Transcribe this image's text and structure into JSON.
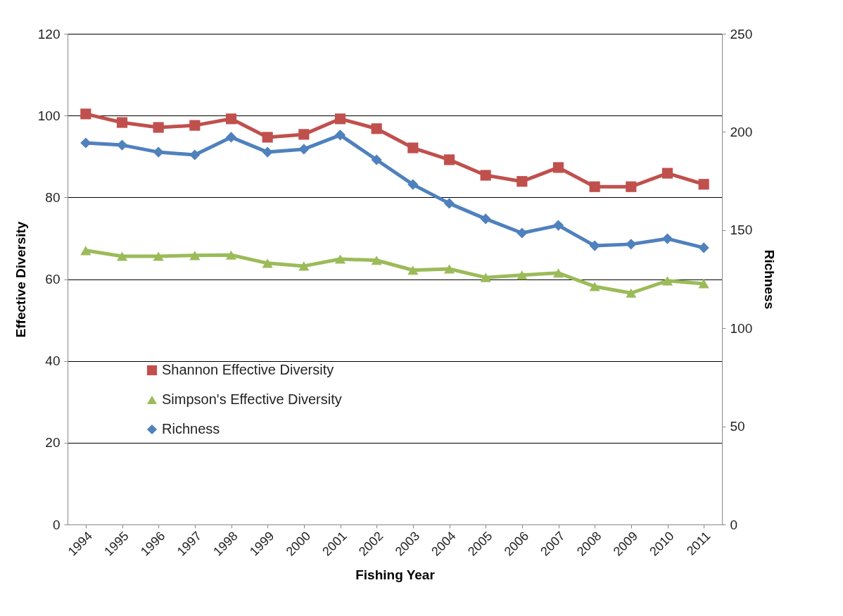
{
  "chart_data": {
    "type": "line",
    "xlabel": "Fishing Year",
    "ylabel": "Effective Diversity",
    "y2label": "Richness",
    "categories": [
      "1994",
      "1995",
      "1996",
      "1997",
      "1998",
      "1999",
      "2000",
      "2001",
      "2002",
      "2003",
      "2004",
      "2005",
      "2006",
      "2007",
      "2008",
      "2009",
      "2010",
      "2011"
    ],
    "series": [
      {
        "name": "Shannon Effective Diversity",
        "color": "#c0504d",
        "marker": "square",
        "values": [
          100.4,
          98.3,
          97.1,
          97.6,
          99.2,
          94.7,
          95.4,
          99.2,
          96.8,
          92.1,
          89.2,
          85.4,
          83.9,
          87.3,
          82.6,
          82.6,
          85.9,
          83.2
        ]
      },
      {
        "name": "Simpson's Effective Diversity",
        "color": "#9bbb59",
        "marker": "triangle",
        "values": [
          67.0,
          65.6,
          65.6,
          65.8,
          65.9,
          63.9,
          63.2,
          64.9,
          64.6,
          62.2,
          62.5,
          60.4,
          61.0,
          61.5,
          58.2,
          56.6,
          59.6,
          58.9
        ]
      },
      {
        "name": "Richness",
        "color": "#4f81bd",
        "marker": "diamond",
        "axis": "y2",
        "values": [
          194.4,
          193.3,
          189.7,
          188.3,
          197.3,
          189.7,
          191.2,
          198.4,
          185.8,
          173.2,
          163.6,
          155.7,
          148.5,
          152.4,
          142.0,
          142.8,
          145.6,
          141.0
        ]
      }
    ],
    "ylim": [
      0,
      120
    ],
    "yticks": [
      0,
      20,
      40,
      60,
      80,
      100,
      120
    ],
    "y2lim": [
      0,
      250
    ],
    "y2ticks": [
      0,
      50,
      100,
      150,
      200,
      250
    ],
    "grid": "y",
    "legend": "left",
    "line_style": "solid"
  }
}
